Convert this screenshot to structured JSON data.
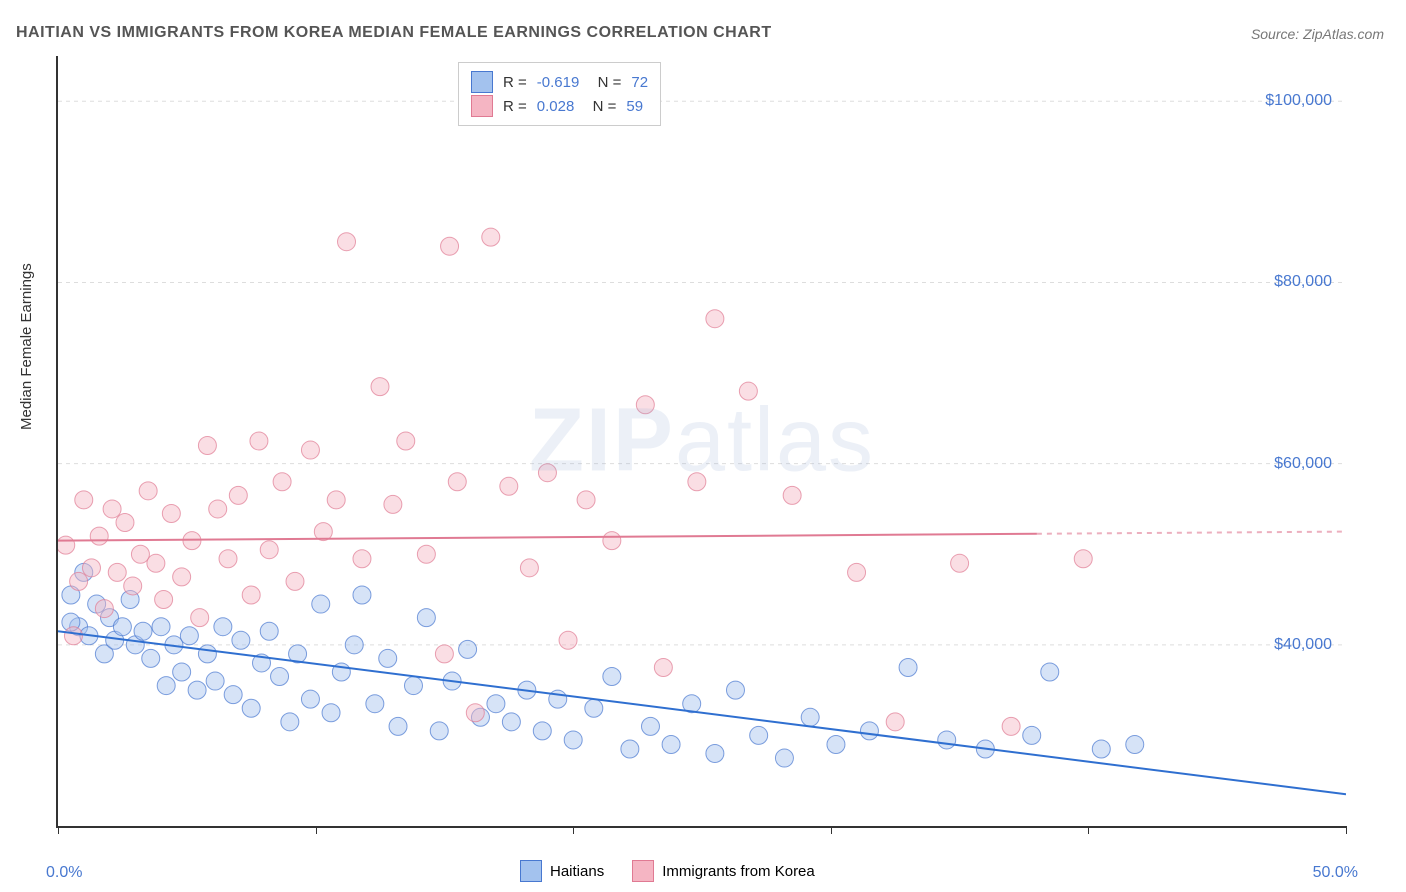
{
  "title": "HAITIAN VS IMMIGRANTS FROM KOREA MEDIAN FEMALE EARNINGS CORRELATION CHART",
  "source": "Source: ZipAtlas.com",
  "watermark": "ZIPatlas",
  "chart": {
    "type": "scatter",
    "background_color": "#ffffff",
    "grid_color": "#dddddd",
    "axis_color": "#333333",
    "xlim": [
      0,
      50
    ],
    "ylim": [
      20000,
      105000
    ],
    "x_ticks": [
      0,
      10,
      20,
      30,
      40,
      50
    ],
    "x_tick_labels": {
      "min": "0.0%",
      "max": "50.0%"
    },
    "y_ticks": [
      40000,
      60000,
      80000,
      100000
    ],
    "y_tick_labels": [
      "$40,000",
      "$60,000",
      "$80,000",
      "$100,000"
    ],
    "y_axis_title": "Median Female Earnings",
    "marker_radius": 9,
    "marker_opacity": 0.45,
    "line_width": 2,
    "series": [
      {
        "name": "Haitians",
        "label": "Haitians",
        "fill_color": "#a3c2ee",
        "stroke_color": "#4878d0",
        "line_color": "#2f6fd0",
        "R": "-0.619",
        "N": "72",
        "regression": {
          "x1": 0,
          "y1": 41500,
          "x2": 50,
          "y2": 23500
        },
        "points": [
          [
            0.5,
            45500
          ],
          [
            0.8,
            42000
          ],
          [
            1.0,
            48000
          ],
          [
            1.2,
            41000
          ],
          [
            1.5,
            44500
          ],
          [
            1.8,
            39000
          ],
          [
            2.0,
            43000
          ],
          [
            2.2,
            40500
          ],
          [
            2.5,
            42000
          ],
          [
            2.8,
            45000
          ],
          [
            3.0,
            40000
          ],
          [
            3.3,
            41500
          ],
          [
            3.6,
            38500
          ],
          [
            4.0,
            42000
          ],
          [
            4.2,
            35500
          ],
          [
            4.5,
            40000
          ],
          [
            4.8,
            37000
          ],
          [
            5.1,
            41000
          ],
          [
            5.4,
            35000
          ],
          [
            5.8,
            39000
          ],
          [
            6.1,
            36000
          ],
          [
            6.4,
            42000
          ],
          [
            6.8,
            34500
          ],
          [
            7.1,
            40500
          ],
          [
            7.5,
            33000
          ],
          [
            7.9,
            38000
          ],
          [
            8.2,
            41500
          ],
          [
            8.6,
            36500
          ],
          [
            9.0,
            31500
          ],
          [
            9.3,
            39000
          ],
          [
            9.8,
            34000
          ],
          [
            10.2,
            44500
          ],
          [
            10.6,
            32500
          ],
          [
            11.0,
            37000
          ],
          [
            11.5,
            40000
          ],
          [
            11.8,
            45500
          ],
          [
            12.3,
            33500
          ],
          [
            12.8,
            38500
          ],
          [
            13.2,
            31000
          ],
          [
            13.8,
            35500
          ],
          [
            14.3,
            43000
          ],
          [
            14.8,
            30500
          ],
          [
            15.3,
            36000
          ],
          [
            15.9,
            39500
          ],
          [
            16.4,
            32000
          ],
          [
            17.0,
            33500
          ],
          [
            17.6,
            31500
          ],
          [
            18.2,
            35000
          ],
          [
            18.8,
            30500
          ],
          [
            19.4,
            34000
          ],
          [
            20.0,
            29500
          ],
          [
            20.8,
            33000
          ],
          [
            21.5,
            36500
          ],
          [
            22.2,
            28500
          ],
          [
            23.0,
            31000
          ],
          [
            23.8,
            29000
          ],
          [
            24.6,
            33500
          ],
          [
            25.5,
            28000
          ],
          [
            26.3,
            35000
          ],
          [
            27.2,
            30000
          ],
          [
            28.2,
            27500
          ],
          [
            29.2,
            32000
          ],
          [
            30.2,
            29000
          ],
          [
            31.5,
            30500
          ],
          [
            33.0,
            37500
          ],
          [
            34.5,
            29500
          ],
          [
            36.0,
            28500
          ],
          [
            37.8,
            30000
          ],
          [
            40.5,
            28500
          ],
          [
            38.5,
            37000
          ],
          [
            41.8,
            29000
          ],
          [
            0.5,
            42500
          ]
        ]
      },
      {
        "name": "Immigrants from Korea",
        "label": "Immigrants from Korea",
        "fill_color": "#f5b5c3",
        "stroke_color": "#e07a93",
        "line_color": "#e07a93",
        "R": "0.028",
        "N": "59",
        "regression": {
          "x1": 0,
          "y1": 51500,
          "x2": 50,
          "y2": 52500,
          "solid_until": 38
        },
        "points": [
          [
            0.3,
            51000
          ],
          [
            0.6,
            41000
          ],
          [
            0.8,
            47000
          ],
          [
            1.0,
            56000
          ],
          [
            1.3,
            48500
          ],
          [
            1.6,
            52000
          ],
          [
            1.8,
            44000
          ],
          [
            2.1,
            55000
          ],
          [
            2.3,
            48000
          ],
          [
            2.6,
            53500
          ],
          [
            2.9,
            46500
          ],
          [
            3.2,
            50000
          ],
          [
            3.5,
            57000
          ],
          [
            3.8,
            49000
          ],
          [
            4.1,
            45000
          ],
          [
            4.4,
            54500
          ],
          [
            4.8,
            47500
          ],
          [
            5.2,
            51500
          ],
          [
            5.5,
            43000
          ],
          [
            5.8,
            62000
          ],
          [
            6.2,
            55000
          ],
          [
            6.6,
            49500
          ],
          [
            7.0,
            56500
          ],
          [
            7.5,
            45500
          ],
          [
            7.8,
            62500
          ],
          [
            8.2,
            50500
          ],
          [
            8.7,
            58000
          ],
          [
            9.2,
            47000
          ],
          [
            9.8,
            61500
          ],
          [
            10.3,
            52500
          ],
          [
            10.8,
            56000
          ],
          [
            11.2,
            84500
          ],
          [
            11.8,
            49500
          ],
          [
            12.5,
            68500
          ],
          [
            13.0,
            55500
          ],
          [
            13.5,
            62500
          ],
          [
            14.3,
            50000
          ],
          [
            15.0,
            39000
          ],
          [
            15.5,
            58000
          ],
          [
            16.2,
            32500
          ],
          [
            16.8,
            85000
          ],
          [
            17.5,
            57500
          ],
          [
            18.3,
            48500
          ],
          [
            19.0,
            59000
          ],
          [
            19.8,
            40500
          ],
          [
            20.5,
            56000
          ],
          [
            21.5,
            51500
          ],
          [
            22.8,
            66500
          ],
          [
            23.5,
            37500
          ],
          [
            24.8,
            58000
          ],
          [
            25.5,
            76000
          ],
          [
            26.8,
            68000
          ],
          [
            28.5,
            56500
          ],
          [
            31.0,
            48000
          ],
          [
            32.5,
            31500
          ],
          [
            35.0,
            49000
          ],
          [
            37.0,
            31000
          ],
          [
            39.8,
            49500
          ],
          [
            15.2,
            84000
          ]
        ]
      }
    ]
  }
}
